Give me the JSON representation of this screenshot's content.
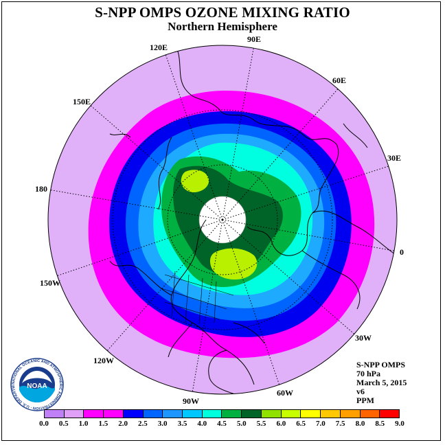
{
  "header": {
    "title": "S-NPP OMPS OZONE MIXING RATIO",
    "subtitle": "Northern Hemisphere"
  },
  "longitude_labels": {
    "e90": "90E",
    "e60": "60E",
    "e30": "30E",
    "zero": "0",
    "e120": "120E",
    "e150": "150E",
    "w180": "180",
    "w150": "150W",
    "w120": "120W",
    "w90": "90W",
    "w60": "60W",
    "w30": "30W"
  },
  "info": {
    "instrument": "S-NPP OMPS",
    "pressure": "70 hPa",
    "date": "March 5, 2015",
    "version": "v6",
    "units": "PPM"
  },
  "logo": {
    "text": "NOAA",
    "ring_text": "NATIONAL OCEANIC AND ATMOSPHERIC ADMINISTRATION · U.S. DEPARTMENT OF COMMERCE"
  },
  "colorbar": {
    "ticks": [
      "0.0",
      "0.5",
      "1.0",
      "1.5",
      "2.0",
      "2.5",
      "3.0",
      "3.5",
      "4.0",
      "4.5",
      "5.0",
      "5.5",
      "6.0",
      "6.5",
      "7.0",
      "7.5",
      "8.0",
      "8.5",
      "9.0"
    ],
    "colors": [
      "#c080f8",
      "#e0a0f8",
      "#ff00ff",
      "#ff00ff",
      "#0000ff",
      "#0064ff",
      "#1e96ff",
      "#00c8ff",
      "#00ffdc",
      "#00b040",
      "#006428",
      "#90e000",
      "#c8ff00",
      "#ffff00",
      "#ffc800",
      "#ffa000",
      "#ff6400",
      "#ff0000",
      "#8b4513"
    ]
  },
  "map_colors": {
    "background": "#e0b0f8",
    "ring_magenta": "#ff00ff",
    "ring_blue": "#0000f0",
    "ring_mid": "#0064ff",
    "ring_light": "#1eaaff",
    "ring_cyan": "#00ffe0",
    "green": "#00b040",
    "dark_green": "#006428",
    "yellow_green": "#b8f000",
    "no_data": "#ffffff"
  }
}
